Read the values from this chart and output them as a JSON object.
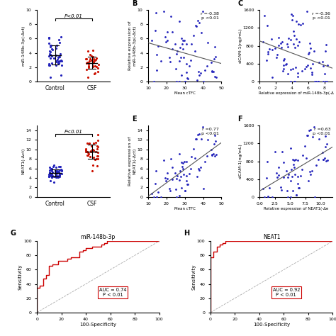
{
  "panel_A": {
    "ylabel": "miR-148b-3p(-Δct)",
    "groups": [
      "Control",
      "CSF"
    ],
    "ctrl_mean": 3.8,
    "ctrl_std": 1.4,
    "csf_mean": 2.4,
    "csf_std": 0.9,
    "ctrl_color": "#2222bb",
    "csf_color": "#cc1100",
    "ptext": "P<0.01",
    "ylim": [
      0,
      10
    ],
    "ctrl_n": 45,
    "csf_n": 35
  },
  "panel_B": {
    "title": "B",
    "xlabel": "Mean cTFC",
    "ylabel": "Relative expression of\nmiR-148b-3p(-Δct)",
    "r": -0.38,
    "rtext": "r =-0.38\np <0.01",
    "xlim": [
      10,
      50
    ],
    "ylim": [
      0,
      10
    ],
    "color": "#2222bb",
    "n": 70
  },
  "panel_C": {
    "title": "C",
    "xlabel": "Relative expression of miR-148b-3p(-Δ",
    "ylabel": "sICAM-1(ng/mL)",
    "r": -0.36,
    "rtext": "r =-0.36\np <0.01",
    "xlim": [
      0,
      9
    ],
    "ylim": [
      0,
      1600
    ],
    "yticks": [
      0,
      400,
      800,
      1200,
      1600
    ],
    "color": "#2222bb",
    "n": 80
  },
  "panel_D": {
    "ylabel": "NEAT1(-Δct)",
    "groups": [
      "Control",
      "CSF"
    ],
    "ctrl_mean": 5.0,
    "ctrl_std": 0.8,
    "csf_mean": 9.2,
    "csf_std": 1.8,
    "ctrl_color": "#2222bb",
    "csf_color": "#cc1100",
    "ptext": "P<0.01",
    "ylim": [
      0,
      15
    ],
    "ctrl_n": 60,
    "csf_n": 35
  },
  "panel_E": {
    "title": "E",
    "xlabel": "Mean cTFC",
    "ylabel": "Relative expression of\nNEAT1(-Δct)",
    "r": 0.77,
    "rtext": "r =0.77\np <0.01",
    "xlim": [
      10,
      50
    ],
    "ylim": [
      0,
      15
    ],
    "color": "#2222bb",
    "n": 70
  },
  "panel_F": {
    "title": "F",
    "xlabel": "Relative expression of NEAT1(-Δe",
    "ylabel": "sICAM-1(ng/mL)",
    "r": 0.63,
    "rtext": "r =0.63\np <0.01",
    "xlim": [
      0,
      12
    ],
    "ylim": [
      0,
      1600
    ],
    "yticks": [
      0,
      400,
      800,
      1200,
      1600
    ],
    "color": "#2222bb",
    "n": 70
  },
  "panel_G": {
    "title": "G",
    "subtitle": "miR-148b-3p",
    "xlabel": "100-Specificity",
    "ylabel": "Sensitivity",
    "auc_text": "AUC = 0.74\nP < 0.01",
    "auc": 0.74,
    "color": "#cc0000"
  },
  "panel_H": {
    "title": "H",
    "subtitle": "NEAT1",
    "xlabel": "100-Specificity",
    "ylabel": "Sensitivity",
    "auc_text": "AUC = 0.92\nP < 0.01",
    "auc": 0.92,
    "color": "#cc0000"
  }
}
